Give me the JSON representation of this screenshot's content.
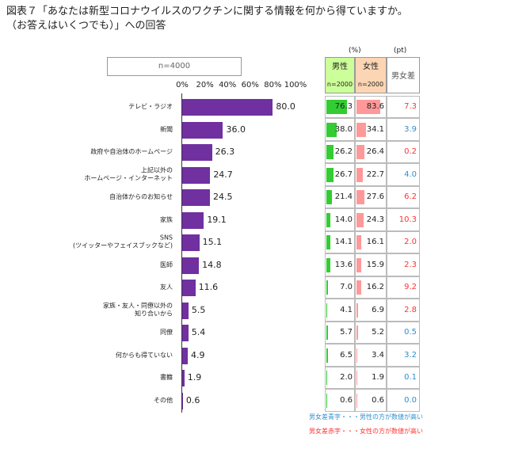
{
  "chart_data": {
    "type": "bar",
    "orientation": "horizontal",
    "title": "図表７「あなたは新型コロナウイルスのワクチンに関する情報を何から得ていますか。\n（お答えはいくつでも）」への回答",
    "n_label": "n=4000",
    "categories": [
      "テレビ・ラジオ",
      "新聞",
      "政府や自治体のホームページ",
      "上記以外の\nホームページ・インターネット",
      "自治体からのお知らせ",
      "家族",
      "SNS\n(ツイッターやフェイスブックなど)",
      "医師",
      "友人",
      "家族・友人・同僚以外の\n知り合いから",
      "同僚",
      "何からも得ていない",
      "書籍",
      "その他"
    ],
    "values": [
      80.0,
      36.0,
      26.3,
      24.7,
      24.5,
      19.1,
      15.1,
      14.8,
      11.6,
      5.5,
      5.4,
      4.9,
      1.9,
      0.6
    ],
    "value_labels": [
      "80.0",
      "36.0",
      "26.3",
      "24.7",
      "24.5",
      "19.1",
      "15.1",
      "14.8",
      "11.6",
      "5.5",
      "5.4",
      "4.9",
      "1.9",
      "0.6"
    ],
    "color": "#7030a0",
    "xlim": [
      0,
      100
    ],
    "xticks": [
      {
        "value": 0,
        "label": "0%"
      },
      {
        "value": 20,
        "label": "20%"
      },
      {
        "value": 40,
        "label": "40%"
      },
      {
        "value": 60,
        "label": "60%"
      },
      {
        "value": 80,
        "label": "80%"
      },
      {
        "value": 100,
        "label": "100%"
      }
    ],
    "table": {
      "unit": "(%)",
      "diff_unit": "(pt)",
      "columns": [
        {
          "name": "男性",
          "n": "n=2000",
          "color": "#33cc33",
          "header_color": "#ccff99",
          "values": [
            76.3,
            38.0,
            26.2,
            26.7,
            21.4,
            14.0,
            14.1,
            13.6,
            7.0,
            4.1,
            5.7,
            6.5,
            2.0,
            0.6
          ],
          "value_labels": [
            "76.3",
            "38.0",
            "26.2",
            "26.7",
            "21.4",
            "14.0",
            "14.1",
            "13.6",
            "7.0",
            "4.1",
            "5.7",
            "6.5",
            "2.0",
            "0.6"
          ]
        },
        {
          "name": "女性",
          "n": "n=2000",
          "color": "#ff9999",
          "header_color": "#fcd5b4",
          "values": [
            83.6,
            34.1,
            26.4,
            22.7,
            27.6,
            24.3,
            16.1,
            15.9,
            16.2,
            6.9,
            5.2,
            3.4,
            1.9,
            0.6
          ],
          "value_labels": [
            "83.6",
            "34.1",
            "26.4",
            "22.7",
            "27.6",
            "24.3",
            "16.1",
            "15.9",
            "16.2",
            "6.9",
            "5.2",
            "3.4",
            "1.9",
            "0.6"
          ]
        }
      ],
      "diff": {
        "name": "男女差",
        "male_higher_color": "#2e8fcf",
        "female_higher_color": "#ff3333",
        "values": [
          7.3,
          3.9,
          0.2,
          4.0,
          6.2,
          10.3,
          2.0,
          2.3,
          9.2,
          2.8,
          0.5,
          3.2,
          0.1,
          0.0
        ],
        "value_labels": [
          "7.3",
          "3.9",
          "0.2",
          "4.0",
          "6.2",
          "10.3",
          "2.0",
          "2.3",
          "9.2",
          "2.8",
          "0.5",
          "3.2",
          "0.1",
          "0.0"
        ]
      },
      "notes": [
        {
          "text": "男女差青字・・・男性の方が数値が高い",
          "color": "#2e8fcf"
        },
        {
          "text": "男女差赤字・・・女性の方が数値が高い",
          "color": "#ff3333"
        }
      ]
    }
  }
}
